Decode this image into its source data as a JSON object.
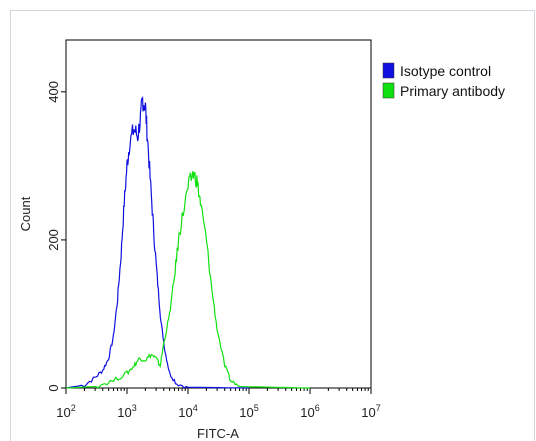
{
  "chart_data": {
    "type": "line",
    "title": "",
    "xlabel": "FITC-A",
    "ylabel": "Count",
    "x_scale": "log",
    "xlim": [
      100,
      10000000
    ],
    "ylim": [
      0,
      470
    ],
    "grid": false,
    "legend_position": "right",
    "x_ticks": [
      {
        "value": 100,
        "base": "10",
        "exp": "2"
      },
      {
        "value": 1000,
        "base": "10",
        "exp": "3"
      },
      {
        "value": 10000,
        "base": "10",
        "exp": "4"
      },
      {
        "value": 100000,
        "base": "10",
        "exp": "5"
      },
      {
        "value": 1000000,
        "base": "10",
        "exp": "6"
      },
      {
        "value": 10000000,
        "base": "10",
        "exp": "7"
      }
    ],
    "y_ticks": [
      {
        "value": 0,
        "label": "0"
      },
      {
        "value": 200,
        "label": "200"
      },
      {
        "value": 400,
        "label": "400"
      }
    ],
    "series": [
      {
        "name": "Isotype control",
        "color": "#1010e0",
        "points": [
          [
            100,
            0
          ],
          [
            200,
            4
          ],
          [
            300,
            14
          ],
          [
            400,
            24
          ],
          [
            500,
            40
          ],
          [
            600,
            70
          ],
          [
            700,
            120
          ],
          [
            800,
            180
          ],
          [
            900,
            250
          ],
          [
            1000,
            300
          ],
          [
            1100,
            330
          ],
          [
            1300,
            350
          ],
          [
            1500,
            340
          ],
          [
            1700,
            370
          ],
          [
            1800,
            390
          ],
          [
            2000,
            380
          ],
          [
            2200,
            330
          ],
          [
            2500,
            260
          ],
          [
            2800,
            200
          ],
          [
            3200,
            140
          ],
          [
            3600,
            90
          ],
          [
            4200,
            50
          ],
          [
            5000,
            20
          ],
          [
            6500,
            6
          ],
          [
            10000,
            1
          ],
          [
            100000,
            0
          ]
        ]
      },
      {
        "name": "Primary antibody",
        "color": "#10e010",
        "points": [
          [
            100,
            0
          ],
          [
            300,
            2
          ],
          [
            600,
            10
          ],
          [
            1000,
            20
          ],
          [
            1300,
            30
          ],
          [
            1600,
            40
          ],
          [
            2000,
            38
          ],
          [
            2500,
            45
          ],
          [
            3000,
            40
          ],
          [
            3500,
            30
          ],
          [
            4000,
            60
          ],
          [
            5000,
            100
          ],
          [
            6000,
            150
          ],
          [
            7000,
            200
          ],
          [
            8000,
            230
          ],
          [
            10000,
            270
          ],
          [
            12000,
            290
          ],
          [
            14000,
            280
          ],
          [
            16000,
            250
          ],
          [
            20000,
            200
          ],
          [
            24000,
            140
          ],
          [
            30000,
            80
          ],
          [
            40000,
            30
          ],
          [
            50000,
            10
          ],
          [
            70000,
            2
          ],
          [
            1000000,
            0
          ]
        ]
      }
    ]
  }
}
